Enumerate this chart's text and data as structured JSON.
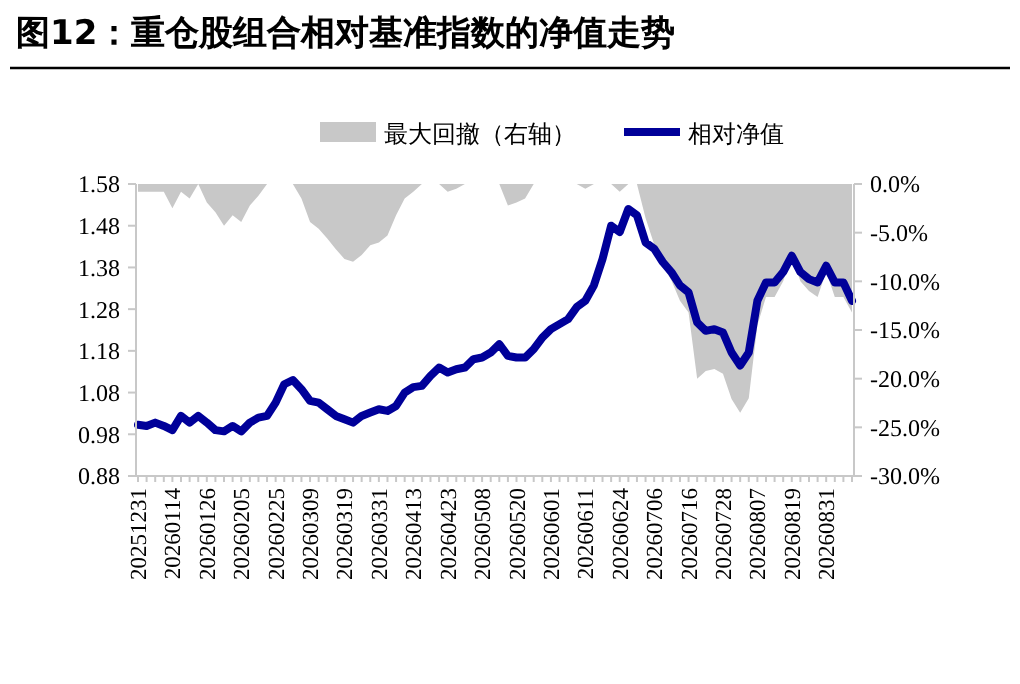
{
  "chart_data": {
    "type": "line",
    "title": "图12：重仓股组合相对基准指数的净值走势",
    "categories": [
      "20251231",
      null,
      null,
      null,
      "20260114",
      null,
      null,
      null,
      "20260126",
      null,
      null,
      null,
      "20260205",
      null,
      null,
      null,
      "20260225",
      null,
      null,
      null,
      "20260309",
      null,
      null,
      null,
      "20260319",
      null,
      null,
      null,
      "20260331",
      null,
      null,
      null,
      "20260413",
      null,
      null,
      null,
      "20260423",
      null,
      null,
      null,
      "20260508",
      null,
      null,
      null,
      "20260520",
      null,
      null,
      null,
      "20260601",
      null,
      null,
      null,
      "20260611",
      null,
      null,
      null,
      "20260624",
      null,
      null,
      null,
      "20260706",
      null,
      null,
      null,
      "20260716",
      null,
      null,
      null,
      "20260728",
      null,
      null,
      null,
      "20260807",
      null,
      null,
      null,
      "20260819",
      null,
      null,
      null,
      "20260831",
      null,
      null,
      null
    ],
    "series": [
      {
        "name": "最大回撤（右轴）",
        "type": "area",
        "axis": "y2",
        "color": "#c8c8c8",
        "values": [
          -0.8,
          -0.8,
          -0.8,
          -0.8,
          -2.5,
          -0.8,
          -1.5,
          0,
          -1.9,
          -2.9,
          -4.3,
          -3.2,
          -3.9,
          -2.2,
          -1.2,
          0,
          0,
          0,
          0,
          -1.5,
          -3.9,
          -4.6,
          -5.6,
          -6.7,
          -7.7,
          -8.0,
          -7.3,
          -6.3,
          -6.0,
          -5.3,
          -3.2,
          -1.5,
          -0.8,
          0,
          0,
          0,
          -0.8,
          -0.5,
          0,
          0,
          0,
          0,
          0,
          -2.2,
          -1.9,
          -1.5,
          0,
          0,
          0,
          0,
          0,
          0,
          -0.5,
          0,
          0,
          0,
          -0.8,
          0,
          0,
          -3.5,
          -6.2,
          -8.4,
          -9.9,
          -12,
          -13.2,
          -20,
          -19.2,
          -19,
          -19.5,
          -22.1,
          -23.5,
          -22,
          -14.5,
          -11.6,
          -11.6,
          -10,
          -7.4,
          -10,
          -11,
          -11.6,
          -9,
          -11.6,
          -11.6,
          -13.2
        ]
      },
      {
        "name": "相对净值",
        "color": "#000099",
        "values": [
          1.003,
          1.0,
          1.008,
          1.0,
          0.99,
          1.024,
          1.008,
          1.024,
          1.008,
          0.99,
          0.987,
          1.0,
          0.987,
          1.008,
          1.02,
          1.024,
          1.056,
          1.1,
          1.11,
          1.088,
          1.06,
          1.056,
          1.04,
          1.024,
          1.016,
          1.008,
          1.024,
          1.032,
          1.04,
          1.036,
          1.048,
          1.08,
          1.093,
          1.096,
          1.12,
          1.14,
          1.128,
          1.136,
          1.14,
          1.16,
          1.164,
          1.176,
          1.196,
          1.168,
          1.164,
          1.164,
          1.184,
          1.212,
          1.232,
          1.244,
          1.256,
          1.285,
          1.3,
          1.337,
          1.4,
          1.48,
          1.465,
          1.52,
          1.505,
          1.44,
          1.425,
          1.393,
          1.369,
          1.337,
          1.32,
          1.248,
          1.228,
          1.232,
          1.224,
          1.176,
          1.145,
          1.176,
          1.3,
          1.344,
          1.344,
          1.369,
          1.408,
          1.369,
          1.352,
          1.344,
          1.384,
          1.344,
          1.344,
          1.3
        ]
      }
    ],
    "ylim": [
      0.88,
      1.58
    ],
    "yticks": [
      0.88,
      0.98,
      1.08,
      1.18,
      1.28,
      1.38,
      1.48,
      1.58
    ],
    "y2lim": [
      -30,
      0
    ],
    "y2ticks": [
      {
        "value": 0,
        "label": "0.0%"
      },
      {
        "value": -5,
        "label": "-5.0%"
      },
      {
        "value": -10,
        "label": "-10.0%"
      },
      {
        "value": -15,
        "label": "-15.0%"
      },
      {
        "value": -20,
        "label": "-20.0%"
      },
      {
        "value": -25,
        "label": "-25.0%"
      },
      {
        "value": -30,
        "label": "-30.0%"
      }
    ],
    "legend": "top",
    "grid": false
  }
}
